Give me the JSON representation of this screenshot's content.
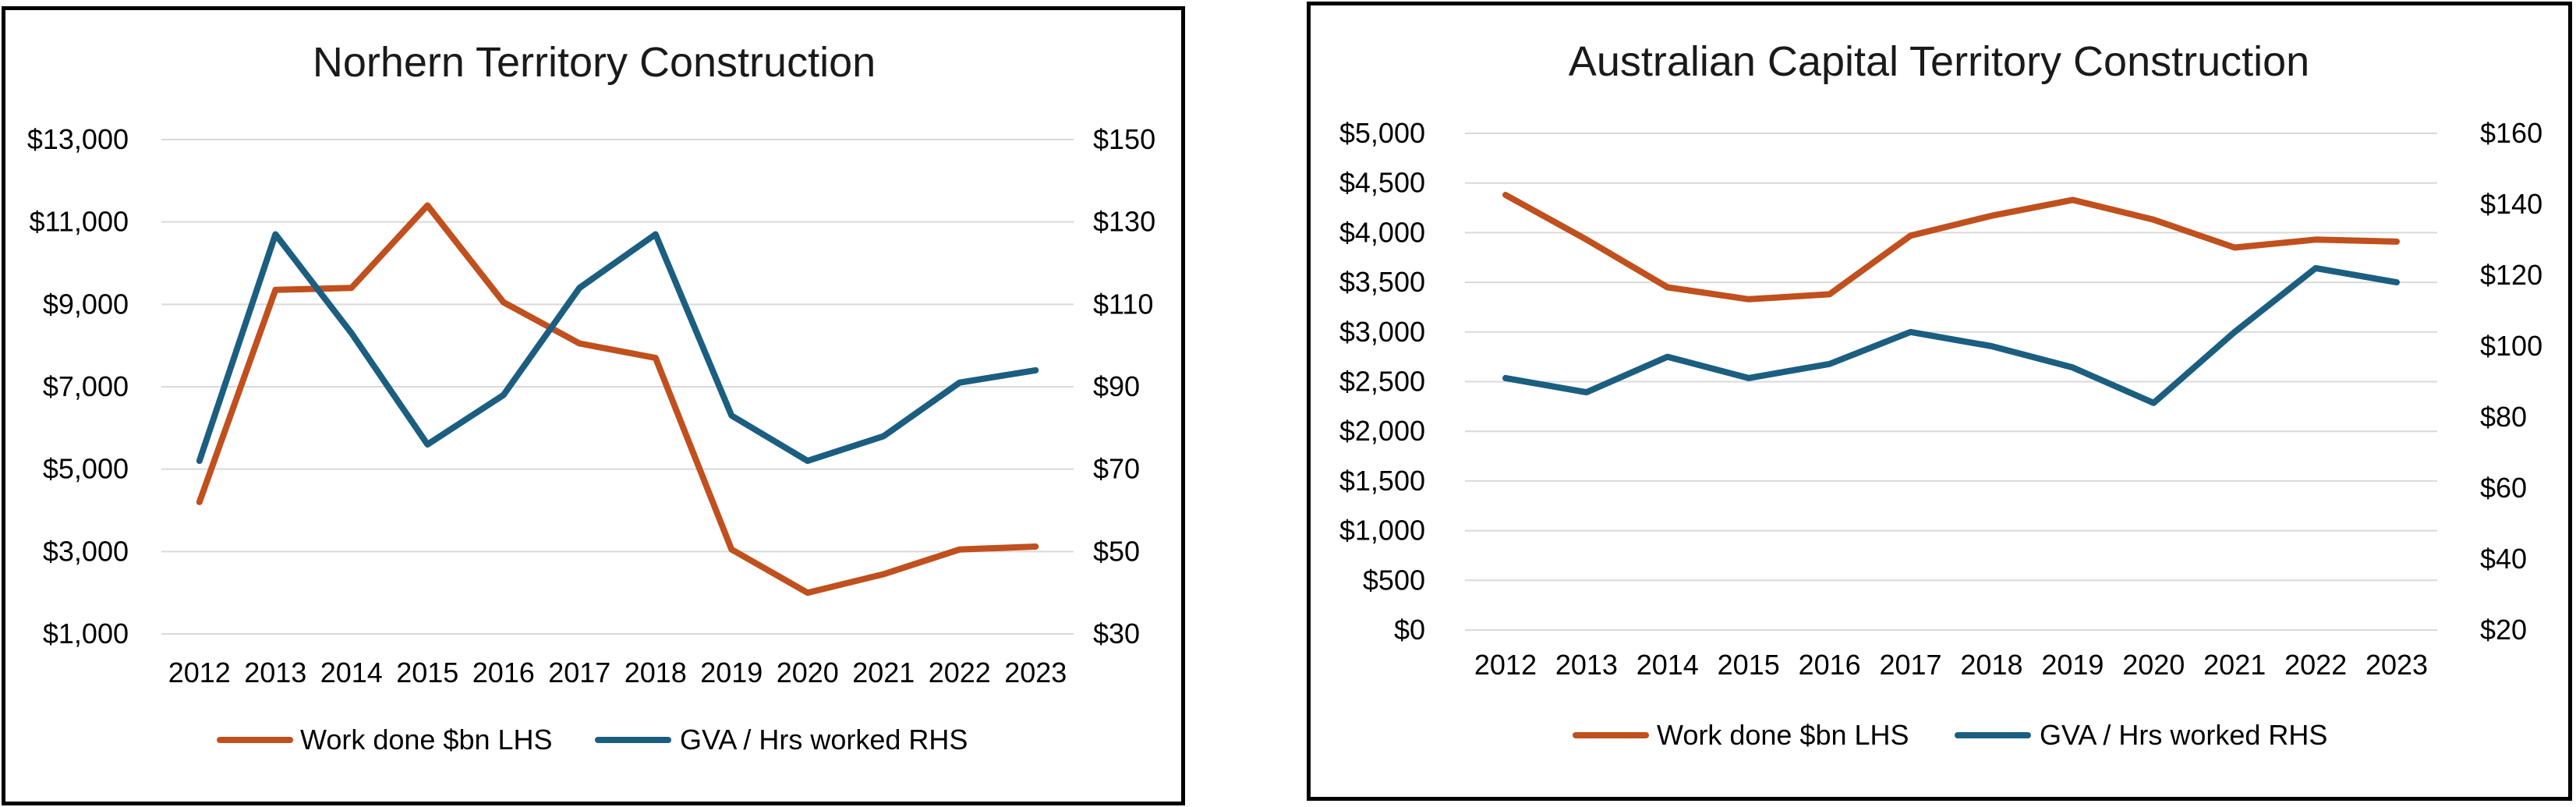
{
  "colors": {
    "work_done": "#C0501E",
    "gva": "#1B5E80",
    "grid": "#D9D9D9"
  },
  "chart_data": [
    {
      "type": "line",
      "title": "Norhern Territory Construction",
      "categories": [
        "2012",
        "2013",
        "2014",
        "2015",
        "2016",
        "2017",
        "2018",
        "2019",
        "2020",
        "2021",
        "2022",
        "2023"
      ],
      "left_axis": {
        "min": 1000,
        "max": 13000,
        "ticks": [
          1000,
          3000,
          5000,
          7000,
          9000,
          11000,
          13000
        ],
        "tick_labels": [
          "$1,000",
          "$3,000",
          "$5,000",
          "$7,000",
          "$9,000",
          "$11,000",
          "$13,000"
        ]
      },
      "right_axis": {
        "min": 30,
        "max": 150,
        "ticks": [
          30,
          50,
          70,
          90,
          110,
          130,
          150
        ],
        "tick_labels": [
          "$30",
          "$50",
          "$70",
          "$90",
          "$110",
          "$130",
          "$150"
        ]
      },
      "grid": true,
      "legend_position": "bottom",
      "series": [
        {
          "name": "Work done $bn LHS",
          "axis": "left",
          "values": [
            4200,
            9350,
            9400,
            11400,
            9050,
            8050,
            7700,
            3050,
            2000,
            2450,
            3050,
            3120
          ]
        },
        {
          "name": "GVA / Hrs worked RHS",
          "axis": "right",
          "values": [
            72,
            127,
            103,
            76,
            88,
            114,
            127,
            83,
            72,
            78,
            91,
            94
          ]
        }
      ]
    },
    {
      "type": "line",
      "title": "Australian Capital Territory Construction",
      "categories": [
        "2012",
        "2013",
        "2014",
        "2015",
        "2016",
        "2017",
        "2018",
        "2019",
        "2020",
        "2021",
        "2022",
        "2023"
      ],
      "left_axis": {
        "min": 0,
        "max": 5000,
        "ticks": [
          0,
          500,
          1000,
          1500,
          2000,
          2500,
          3000,
          3500,
          4000,
          4500,
          5000
        ],
        "tick_labels": [
          "$0",
          "$500",
          "$1,000",
          "$1,500",
          "$2,000",
          "$2,500",
          "$3,000",
          "$3,500",
          "$4,000",
          "$4,500",
          "$5,000"
        ]
      },
      "right_axis": {
        "min": 20,
        "max": 160,
        "ticks": [
          20,
          40,
          60,
          80,
          100,
          120,
          140,
          160
        ],
        "tick_labels": [
          "$20",
          "$40",
          "$60",
          "$80",
          "$100",
          "$120",
          "$140",
          "$160"
        ]
      },
      "grid": true,
      "legend_position": "bottom",
      "series": [
        {
          "name": "Work done $bn LHS",
          "axis": "left",
          "values": [
            4380,
            3930,
            3450,
            3330,
            3380,
            3970,
            4170,
            4330,
            4130,
            3850,
            3930,
            3910
          ]
        },
        {
          "name": "GVA / Hrs worked RHS",
          "axis": "right",
          "values": [
            91,
            87,
            97,
            91,
            95,
            104,
            100,
            94,
            84,
            104,
            122,
            118
          ]
        }
      ]
    }
  ]
}
